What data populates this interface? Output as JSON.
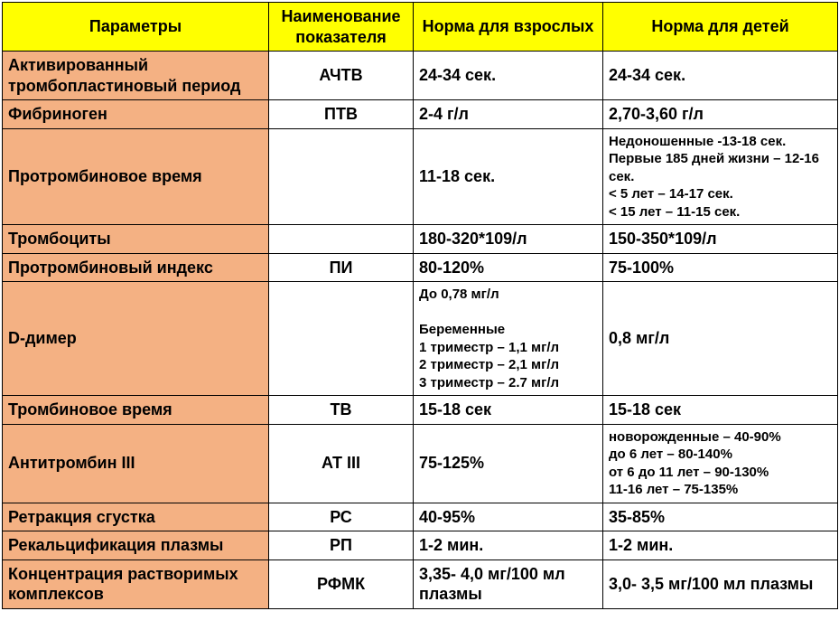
{
  "header": {
    "c1": "Параметры",
    "c2": "Наименование показателя",
    "c3": "Норма для взрослых",
    "c4": "Норма для детей"
  },
  "rows": [
    {
      "param": "Активированный тромбопластиновый период",
      "ind": "АЧТВ",
      "adult": "24-34 сек.",
      "child": "24-34 сек.",
      "tall": true
    },
    {
      "param": "Фибриноген",
      "ind": "ПТВ",
      "adult": "2-4 г/л",
      "child": "2,70-3,60 г/л"
    },
    {
      "param": "Протромбиновое время",
      "ind": "",
      "adult": "11-18 сек.",
      "child": "Недоношенные -13-18 сек.\nПервые 185 дней жизни – 12-16 сек.\n< 5 лет – 14-17 сек.\n< 15 лет – 11-15 сек.",
      "child_small": true,
      "tall": true
    },
    {
      "param": "Тромбоциты",
      "ind": "",
      "adult": "180-320*109/л",
      "child": "150-350*109/л"
    },
    {
      "param": "Протромбиновый индекс",
      "ind": "ПИ",
      "adult": "80-120%",
      "child": "75-100%"
    },
    {
      "param": "D-димер",
      "ind": "",
      "adult": "До 0,78 мг/л\n\nБеременные\n1 триместр – 1,1 мг/л\n2 триместр – 2,1 мг/л\n3 триместр – 2.7 мг/л",
      "adult_small": true,
      "child": "0,8 мг/л",
      "tall": true
    },
    {
      "param": "Тромбиновое время",
      "ind": "ТВ",
      "adult": "15-18 сек",
      "child": "15-18 сек"
    },
    {
      "param": "Антитромбин III",
      "ind": "АТ III",
      "adult": "75-125%",
      "child": "новорожденные – 40-90%\nдо 6 лет – 80-140%\nот 6 до 11 лет – 90-130%\n11-16 лет – 75-135%",
      "child_small": true,
      "tall": true
    },
    {
      "param": "Ретракция сгустка",
      "ind": "РС",
      "adult": "40-95%",
      "child": "35-85%"
    },
    {
      "param": "Рекальцификация плазмы",
      "ind": "РП",
      "adult": "1-2 мин.",
      "child": "1-2 мин."
    },
    {
      "param": "Концентрация растворимых комплексов",
      "ind": "РФМК",
      "adult": "3,35- 4,0 мг/100 мл плазмы",
      "child": "3,0- 3,5 мг/100 мл плазмы"
    }
  ],
  "colors": {
    "header_bg": "#ffff00",
    "param_bg": "#f4b183",
    "border": "#000000",
    "text": "#000000"
  }
}
